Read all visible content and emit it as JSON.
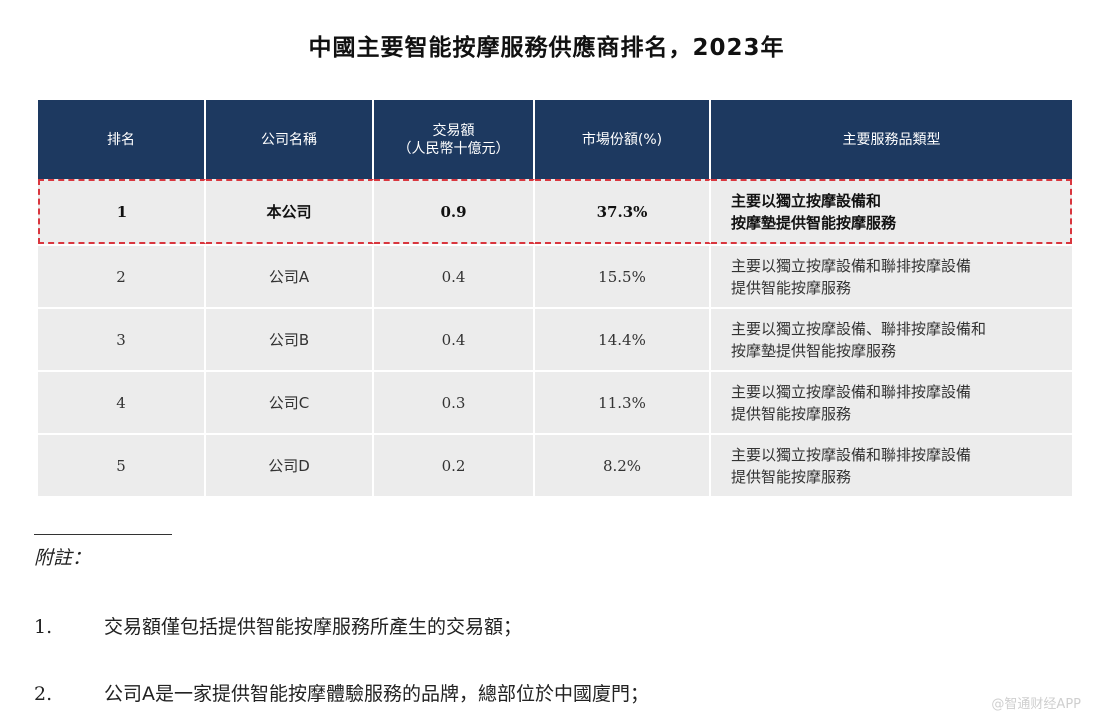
{
  "title": "中國主要智能按摩服務供應商排名，2023年",
  "table": {
    "headers": [
      "排名",
      "公司名稱",
      "交易額",
      "（人民幣十億元）",
      "市場份額(%)",
      "主要服務品類型"
    ],
    "rows": [
      {
        "rank": "1",
        "company": "本公司",
        "amount": "0.9",
        "share": "37.3%",
        "service_1": "主要以獨立按摩設備和",
        "service_2": "按摩墊提供智能按摩服務"
      },
      {
        "rank": "2",
        "company": "公司A",
        "amount": "0.4",
        "share": "15.5%",
        "service_1": "主要以獨立按摩設備和聯排按摩設備",
        "service_2": "提供智能按摩服務"
      },
      {
        "rank": "3",
        "company": "公司B",
        "amount": "0.4",
        "share": "14.4%",
        "service_1": "主要以獨立按摩設備、聯排按摩設備和",
        "service_2": "按摩墊提供智能按摩服務"
      },
      {
        "rank": "4",
        "company": "公司C",
        "amount": "0.3",
        "share": "11.3%",
        "service_1": "主要以獨立按摩設備和聯排按摩設備",
        "service_2": "提供智能按摩服務"
      },
      {
        "rank": "5",
        "company": "公司D",
        "amount": "0.2",
        "share": "8.2%",
        "service_1": "主要以獨立按摩設備和聯排按摩設備",
        "service_2": "提供智能按摩服務"
      }
    ]
  },
  "notes": {
    "title": "附註：",
    "items": [
      {
        "num": "1.",
        "text": "交易額僅包括提供智能按摩服務所產生的交易額；"
      },
      {
        "num": "2.",
        "text": "公司A是一家提供智能按摩體驗服務的品牌，總部位於中國廈門；"
      }
    ]
  },
  "watermark": "@智通财经APP",
  "colors": {
    "header_bg": "#1d3960",
    "row_bg": "#ececec",
    "highlight_border": "#d9363e"
  }
}
